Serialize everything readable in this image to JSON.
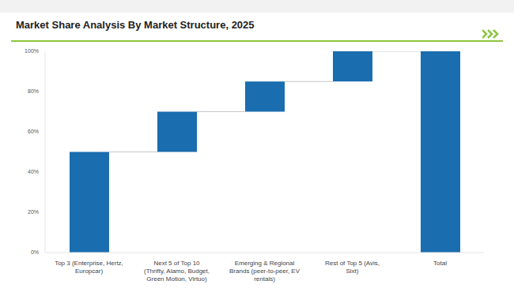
{
  "chart_data": {
    "type": "waterfall",
    "title": "Market Share Analysis By Market Structure, 2025",
    "categories": [
      "Top 3 (Enterprise, Hertz, Europcar)",
      "Next 5 of Top 10 (Thrifty, Alamo, Budget, Green Motion, Virtuo)",
      "Emerging & Regional Brands (peer-to-peer, EV rentals)",
      "Rest of Top 5 (Avis, Sixt)",
      "Total"
    ],
    "values": [
      50,
      20,
      15,
      15,
      100
    ],
    "color": "#1a6daf",
    "ylim": [
      0,
      100
    ],
    "yticks": [
      {
        "value": 0,
        "label": "0%"
      },
      {
        "value": 20,
        "label": "20%"
      },
      {
        "value": 40,
        "label": "40%"
      },
      {
        "value": 60,
        "label": "60%"
      },
      {
        "value": 80,
        "label": "80%"
      },
      {
        "value": 100,
        "label": "100%"
      }
    ],
    "grid": false
  }
}
